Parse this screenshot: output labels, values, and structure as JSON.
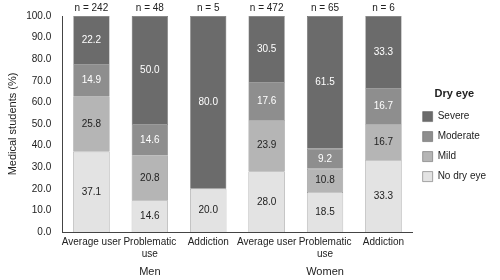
{
  "chart_data": {
    "type": "bar",
    "stacked": true,
    "data_labels": true,
    "grid": false,
    "legend": "right",
    "legend_title": "Dry eye",
    "y_label": "Medical students (%)",
    "categories": [
      "Average user",
      "Problematic use",
      "Addiction",
      "Average user",
      "Problematic use",
      "Addiction"
    ],
    "groups": [
      "Men",
      "Men",
      "Men",
      "Women",
      "Women",
      "Women"
    ],
    "n_labels": [
      "n = 242",
      "n = 48",
      "n = 5",
      "n = 472",
      "n = 65",
      "n = 6"
    ],
    "ylim": [
      0,
      100
    ],
    "yticks": [
      {
        "value": 0,
        "label": "0.0"
      },
      {
        "value": 10,
        "label": "10.0"
      },
      {
        "value": 20,
        "label": "20.0"
      },
      {
        "value": 30,
        "label": "30.0"
      },
      {
        "value": 40,
        "label": "40.0"
      },
      {
        "value": 50,
        "label": "50.0"
      },
      {
        "value": 60,
        "label": "60.0"
      },
      {
        "value": 70,
        "label": "70.0"
      },
      {
        "value": 80,
        "label": "80.0"
      },
      {
        "value": 90,
        "label": "90.0"
      },
      {
        "value": 100,
        "label": "100.0"
      }
    ],
    "series": [
      {
        "name": "No dry eye",
        "color": "#e3e3e3",
        "values": [
          37.1,
          14.6,
          20.0,
          28.0,
          18.5,
          33.3
        ],
        "value_labels": [
          "37.1",
          "14.6",
          "20.0",
          "28.0",
          "18.5",
          "33.3"
        ]
      },
      {
        "name": "Mild",
        "color": "#b5b5b5",
        "values": [
          25.8,
          20.8,
          0,
          23.9,
          10.8,
          16.7
        ],
        "value_labels": [
          "25.8",
          "20.8",
          null,
          "23.9",
          "10.8",
          "16.7"
        ]
      },
      {
        "name": "Moderate",
        "color": "#8e8e8e",
        "values": [
          14.9,
          14.6,
          0,
          17.6,
          9.2,
          16.7
        ],
        "value_labels": [
          "14.9",
          "14.6",
          null,
          "17.6",
          "9.2",
          "16.7"
        ]
      },
      {
        "name": "Severe",
        "color": "#6b6b6b",
        "values": [
          22.2,
          50.0,
          80.0,
          30.5,
          61.5,
          33.3
        ],
        "value_labels": [
          "22.2",
          "50.0",
          "80.0",
          "30.5",
          "61.5",
          "33.3"
        ]
      }
    ]
  }
}
